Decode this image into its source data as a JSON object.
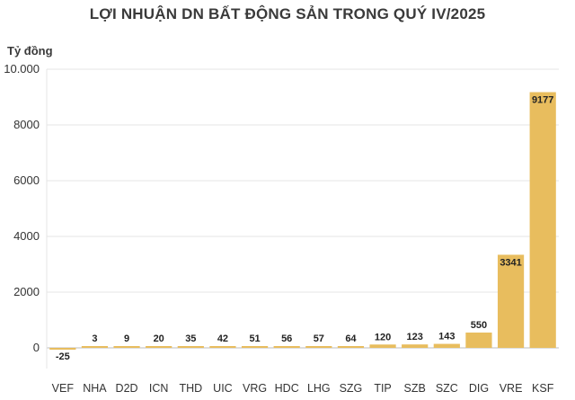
{
  "chart_data": {
    "type": "bar",
    "title": "LỢI NHUẬN DN BẤT ĐỘNG SẢN TRONG QUÝ IV/2025",
    "ylabel": "Tỷ đồng",
    "categories": [
      "VEF",
      "NHA",
      "D2D",
      "ICN",
      "THD",
      "UIC",
      "VRG",
      "HDC",
      "LHG",
      "SZG",
      "TIP",
      "SZB",
      "SZC",
      "DIG",
      "VRE",
      "KSF"
    ],
    "values": [
      -25,
      3,
      9,
      20,
      35,
      42,
      51,
      56,
      57,
      64,
      120,
      123,
      143,
      550,
      3341,
      9177
    ],
    "data_labels": [
      "-25",
      "3",
      "9",
      "20",
      "35",
      "42",
      "51",
      "56",
      "57",
      "64",
      "120",
      "123",
      "143",
      "550",
      "3341",
      "9177"
    ],
    "yticks": [
      0,
      2000,
      4000,
      6000,
      8000,
      10000
    ],
    "ytick_labels": [
      "0",
      "2000",
      "4000",
      "6000",
      "8000",
      "10.000"
    ],
    "ylim": [
      0,
      10000
    ],
    "grid": true,
    "bar_color": "#e8bd5e"
  }
}
